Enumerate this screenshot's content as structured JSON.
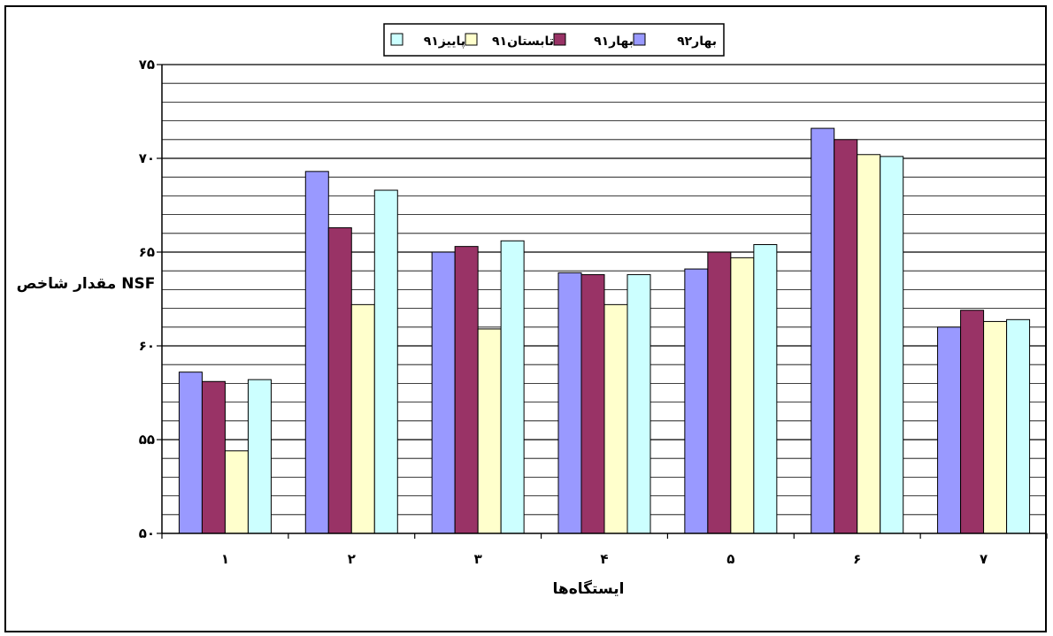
{
  "chart_data": {
    "type": "bar",
    "categories": [
      "۱",
      "۲",
      "۳",
      "۴",
      "۵",
      "۶",
      "۷"
    ],
    "series": [
      {
        "name": "بهار۹۲",
        "color": "#9999ff",
        "values": [
          58.6,
          69.3,
          65.0,
          63.9,
          64.1,
          71.6,
          61.0
        ]
      },
      {
        "name": "بهار۹۱",
        "color": "#993366",
        "values": [
          58.1,
          66.3,
          65.3,
          63.8,
          65.0,
          71.0,
          61.9
        ]
      },
      {
        "name": "تابستان۹۱",
        "color": "#ffffcc",
        "values": [
          54.4,
          62.2,
          60.9,
          62.2,
          64.7,
          70.2,
          61.3
        ]
      },
      {
        "name": "پاییز۹۱",
        "color": "#ccffff",
        "values": [
          58.2,
          68.3,
          65.6,
          63.8,
          65.4,
          70.1,
          61.4
        ]
      }
    ],
    "yticks": [
      "۵۰",
      "۵۵",
      "۶۰",
      "۶۵",
      "۷۰",
      "۷۵"
    ],
    "ylim": [
      50,
      75
    ],
    "ylabel": "مقدار شاخص NSF",
    "xlabel": "ایستگاه‌ها",
    "legend_position": "top-center",
    "grid": true
  }
}
